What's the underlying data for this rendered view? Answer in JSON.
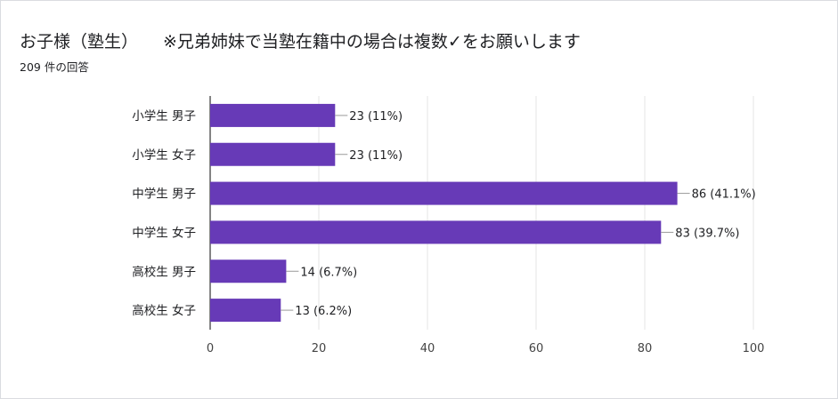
{
  "form": {
    "title_main": "お子様（塾生）",
    "title_note": "※兄弟姉妹で当塾在籍中の場合は複数✓をお願いします",
    "response_count": "209 件の回答"
  },
  "colors": {
    "bar": "#673ab7",
    "grid": "#e6e6e6",
    "axis": "#333333",
    "leader": "#999999"
  },
  "chart_data": {
    "type": "bar",
    "orientation": "horizontal",
    "categories": [
      "小学生 男子",
      "小学生 女子",
      "中学生 男子",
      "中学生 女子",
      "高校生 男子",
      "高校生 女子"
    ],
    "values": [
      23,
      23,
      86,
      83,
      14,
      13
    ],
    "data_labels": [
      "23 (11%)",
      "23 (11%)",
      "86 (41.1%)",
      "83 (39.7%)",
      "14 (6.7%)",
      "13 (6.2%)"
    ],
    "xlim": [
      0,
      100
    ],
    "xticks": [
      0,
      20,
      40,
      60,
      80,
      100
    ],
    "grid": true,
    "xlabel": "",
    "ylabel": ""
  }
}
